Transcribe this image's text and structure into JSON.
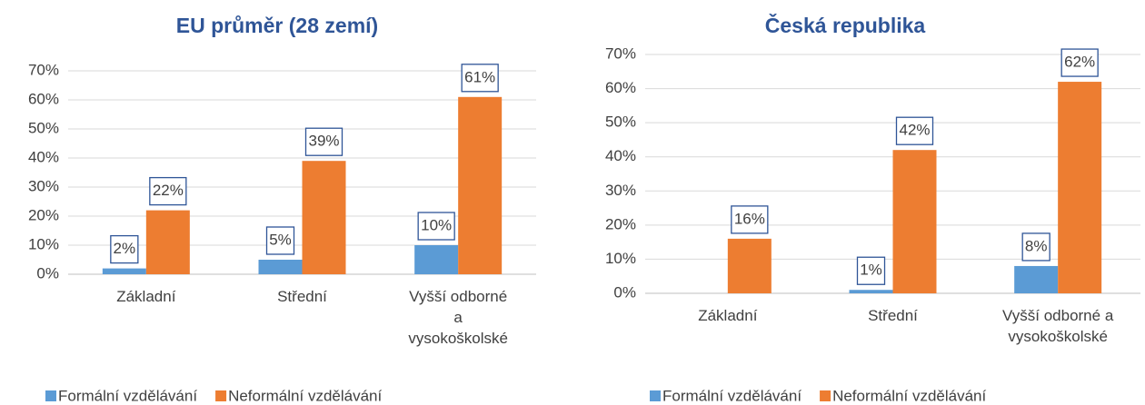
{
  "chart_data": [
    {
      "type": "bar",
      "title": "EU průměr (28 zemí)",
      "categories": [
        "Základní",
        "Střední",
        "Vyšší odborné a vysokoškolské"
      ],
      "series": [
        {
          "name": "Formální vzdělávání",
          "color": "#5b9bd5",
          "values": [
            2,
            5,
            10
          ],
          "value_labels": [
            "2%",
            "5%",
            "10%"
          ]
        },
        {
          "name": "Neformální vzdělávání",
          "color": "#ed7d31",
          "values": [
            22,
            39,
            61
          ],
          "value_labels": [
            "22%",
            "39%",
            "61%"
          ]
        }
      ],
      "ylim": [
        0,
        70
      ],
      "yticks": [
        {
          "value": 0,
          "label": "0%"
        },
        {
          "value": 10,
          "label": "10%"
        },
        {
          "value": 20,
          "label": "20%"
        },
        {
          "value": 30,
          "label": "30%"
        },
        {
          "value": 40,
          "label": "40%"
        },
        {
          "value": 50,
          "label": "50%"
        },
        {
          "value": 60,
          "label": "60%"
        },
        {
          "value": 70,
          "label": "70%"
        }
      ],
      "grid": true,
      "legend": "bottom"
    },
    {
      "type": "bar",
      "title": "Česká republika",
      "categories": [
        "Základní",
        "Střední",
        "Vyšší odborné a vysokoškolské"
      ],
      "series": [
        {
          "name": "Formální vzdělávání",
          "color": "#5b9bd5",
          "values": [
            0,
            1,
            8
          ],
          "value_labels": [
            null,
            "1%",
            "8%"
          ]
        },
        {
          "name": "Neformální vzdělávání",
          "color": "#ed7d31",
          "values": [
            16,
            42,
            62
          ],
          "value_labels": [
            "16%",
            "42%",
            "62%"
          ]
        }
      ],
      "ylim": [
        0,
        70
      ],
      "yticks": [
        {
          "value": 0,
          "label": "0%"
        },
        {
          "value": 10,
          "label": "10%"
        },
        {
          "value": 20,
          "label": "20%"
        },
        {
          "value": 30,
          "label": "30%"
        },
        {
          "value": 40,
          "label": "40%"
        },
        {
          "value": 50,
          "label": "50%"
        },
        {
          "value": 60,
          "label": "60%"
        },
        {
          "value": 70,
          "label": "70%"
        }
      ],
      "grid": true,
      "legend": "bottom"
    }
  ]
}
